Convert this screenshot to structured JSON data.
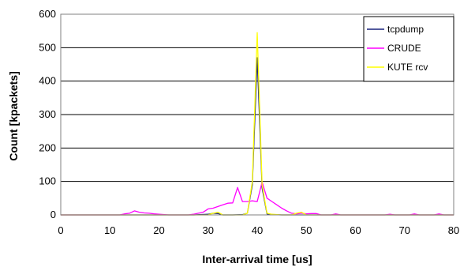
{
  "chart_data": {
    "type": "line",
    "title": "",
    "xlabel": "Inter-arrival time [us]",
    "ylabel": "Count [kpackets]",
    "xlim": [
      0,
      80
    ],
    "ylim": [
      0,
      600
    ],
    "xticks": [
      0,
      10,
      20,
      30,
      40,
      50,
      60,
      70,
      80
    ],
    "yticks": [
      0,
      100,
      200,
      300,
      400,
      500,
      600
    ],
    "grid": "horizontal",
    "legend_position": "top-right",
    "series": [
      {
        "name": "tcpdump",
        "color": "#1a237e",
        "x": [
          0,
          27,
          30,
          31,
          32,
          33,
          35,
          37,
          38,
          39,
          40,
          41,
          42,
          43,
          45,
          50,
          80
        ],
        "y": [
          0,
          0,
          2,
          5,
          4,
          0,
          0,
          1,
          5,
          90,
          470,
          80,
          3,
          1,
          0,
          0,
          0
        ]
      },
      {
        "name": "CRUDE",
        "color": "#ff00ff",
        "x": [
          0,
          12,
          13,
          14,
          15,
          16,
          17,
          18,
          19,
          20,
          22,
          26,
          27,
          28,
          29,
          30,
          31,
          32,
          33,
          34,
          35,
          36,
          37,
          38,
          39,
          40,
          41,
          42,
          43,
          44,
          45,
          46,
          47,
          48,
          49,
          50,
          51,
          52,
          53,
          55,
          56,
          57,
          60,
          66,
          67,
          68,
          71,
          72,
          73,
          76,
          77,
          78,
          80
        ],
        "y": [
          0,
          0,
          3,
          5,
          12,
          8,
          6,
          5,
          3,
          2,
          0,
          0,
          2,
          5,
          8,
          18,
          20,
          25,
          30,
          35,
          36,
          82,
          40,
          40,
          42,
          40,
          98,
          50,
          40,
          30,
          20,
          12,
          5,
          3,
          5,
          3,
          4,
          4,
          0,
          0,
          3,
          0,
          0,
          0,
          2,
          0,
          0,
          3,
          0,
          0,
          3,
          0,
          0
        ]
      },
      {
        "name": "KUTE rcv",
        "color": "#ffff00",
        "x": [
          0,
          30,
          31,
          32,
          33,
          37,
          38,
          39,
          40,
          41,
          42,
          43,
          45,
          47,
          48,
          49,
          50,
          80
        ],
        "y": [
          0,
          0,
          5,
          8,
          0,
          0,
          5,
          100,
          545,
          90,
          5,
          2,
          0,
          0,
          5,
          8,
          0,
          0
        ]
      }
    ]
  }
}
